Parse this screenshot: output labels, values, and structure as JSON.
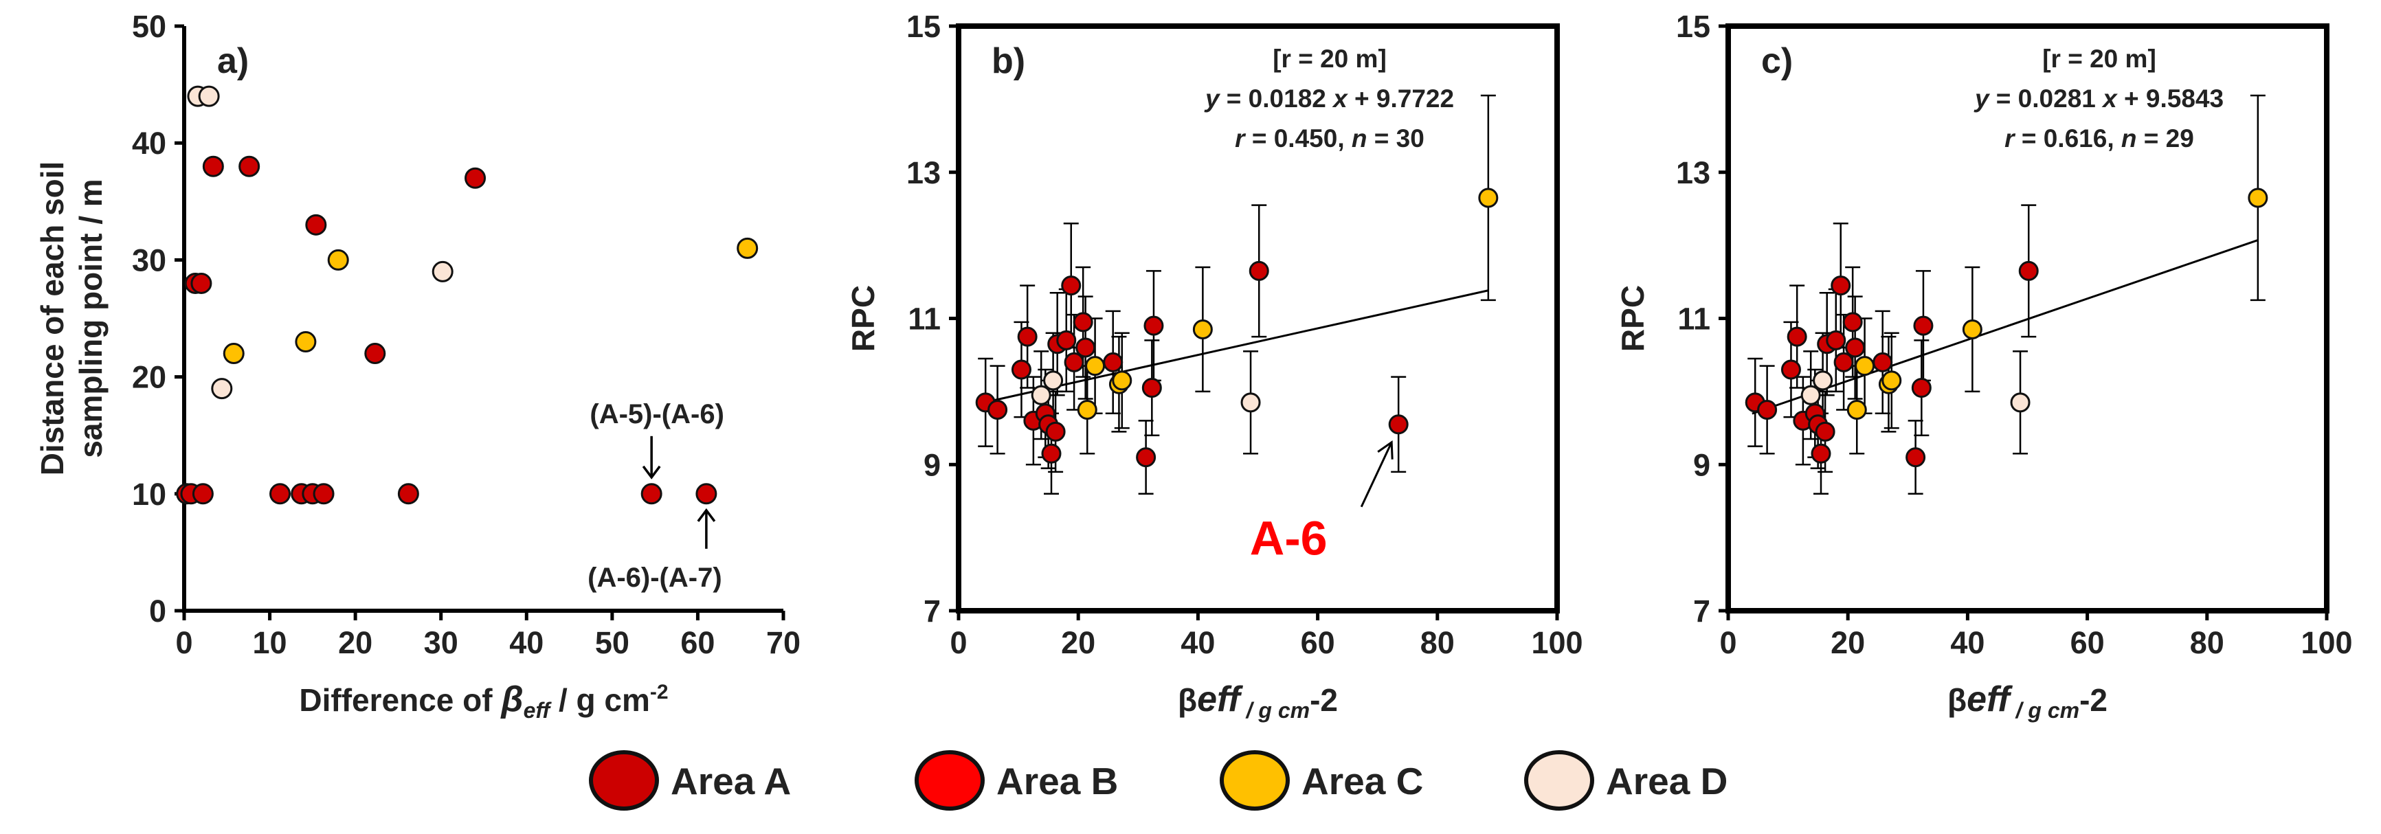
{
  "colors": {
    "area_a": "#cc0000",
    "area_b": "#ff0000",
    "area_c": "#ffc000",
    "area_d": "#fbe5d6",
    "axis": "#000000",
    "text": "#222222",
    "highlight": "#ff0000"
  },
  "legend": {
    "items": [
      {
        "label": "Area A",
        "color": "#cc0000"
      },
      {
        "label": "Area B",
        "color": "#ff0000"
      },
      {
        "label": "Area C",
        "color": "#ffc000"
      },
      {
        "label": "Area D",
        "color": "#fbe5d6"
      }
    ]
  },
  "chart_data": [
    {
      "type": "scatter",
      "panel": "a)",
      "xlabel_parts": [
        "Difference of ",
        "β",
        "eff",
        " / g cm",
        "-2"
      ],
      "ylabel_lines": [
        "Distance of each soil",
        "sampling point / m"
      ],
      "xlim": [
        0,
        70
      ],
      "ylim": [
        0,
        50
      ],
      "xticks": [
        0,
        10,
        20,
        30,
        40,
        50,
        60,
        70
      ],
      "yticks": [
        0,
        10,
        20,
        30,
        40,
        50
      ],
      "points": [
        {
          "x": 0.3,
          "y": 10,
          "area": "A"
        },
        {
          "x": 0.8,
          "y": 10,
          "area": "A"
        },
        {
          "x": 2.2,
          "y": 10,
          "area": "A"
        },
        {
          "x": 11.2,
          "y": 10,
          "area": "A"
        },
        {
          "x": 13.7,
          "y": 10,
          "area": "A"
        },
        {
          "x": 15.0,
          "y": 10,
          "area": "A"
        },
        {
          "x": 16.3,
          "y": 10,
          "area": "A"
        },
        {
          "x": 26.2,
          "y": 10,
          "area": "A"
        },
        {
          "x": 54.6,
          "y": 10,
          "area": "A"
        },
        {
          "x": 61.0,
          "y": 10,
          "area": "A"
        },
        {
          "x": 1.3,
          "y": 28,
          "area": "A"
        },
        {
          "x": 2.0,
          "y": 28,
          "area": "A"
        },
        {
          "x": 3.4,
          "y": 38,
          "area": "A"
        },
        {
          "x": 7.6,
          "y": 38,
          "area": "A"
        },
        {
          "x": 15.4,
          "y": 33,
          "area": "A"
        },
        {
          "x": 22.3,
          "y": 22,
          "area": "A"
        },
        {
          "x": 34.0,
          "y": 37,
          "area": "A"
        },
        {
          "x": 18.0,
          "y": 30,
          "area": "C"
        },
        {
          "x": 14.2,
          "y": 23,
          "area": "C"
        },
        {
          "x": 5.8,
          "y": 22,
          "area": "C"
        },
        {
          "x": 65.8,
          "y": 31,
          "area": "C"
        },
        {
          "x": 1.6,
          "y": 44,
          "area": "D"
        },
        {
          "x": 2.9,
          "y": 44,
          "area": "D"
        },
        {
          "x": 4.4,
          "y": 19,
          "area": "D"
        },
        {
          "x": 30.2,
          "y": 29,
          "area": "D"
        }
      ],
      "annotations": [
        {
          "text": "(A-5)-(A-6)",
          "target_x": 54.6,
          "target_y": 10,
          "side": "above"
        },
        {
          "text": "(A-6)-(A-7)",
          "target_x": 61.0,
          "target_y": 10,
          "side": "below"
        }
      ]
    },
    {
      "type": "scatter",
      "panel": "b)",
      "xlabel_parts": [
        "β",
        "eff",
        " / g cm",
        "-2"
      ],
      "ylabel": "RPC",
      "xlim": [
        0,
        100
      ],
      "ylim": [
        7,
        15
      ],
      "xticks": [
        0,
        20,
        40,
        60,
        80,
        100
      ],
      "yticks": [
        7,
        9,
        11,
        13,
        15
      ],
      "stats": {
        "line1": "[r = 20 m]",
        "slope": "0.0182",
        "intercept": "9.7722",
        "r": "0.450",
        "n": "30"
      },
      "fit": {
        "slope": 0.0182,
        "intercept": 9.7722,
        "x_range": [
          4,
          88.5
        ]
      },
      "highlight": {
        "text": "A-6",
        "target_x": 73.5,
        "target_y": 9.55
      },
      "points": [
        {
          "x": 4.5,
          "y": 9.85,
          "err": 0.6,
          "area": "A"
        },
        {
          "x": 6.5,
          "y": 9.75,
          "err": 0.6,
          "area": "A"
        },
        {
          "x": 10.5,
          "y": 10.3,
          "err": 0.65,
          "area": "A"
        },
        {
          "x": 11.5,
          "y": 10.75,
          "err": 0.7,
          "area": "A"
        },
        {
          "x": 12.5,
          "y": 9.6,
          "err": 0.6,
          "area": "A"
        },
        {
          "x": 14.5,
          "y": 9.7,
          "err": 0.6,
          "area": "A"
        },
        {
          "x": 15.0,
          "y": 9.55,
          "err": 0.6,
          "area": "A"
        },
        {
          "x": 15.5,
          "y": 9.15,
          "err": 0.55,
          "area": "A"
        },
        {
          "x": 16.2,
          "y": 9.45,
          "err": 0.55,
          "area": "A"
        },
        {
          "x": 16.5,
          "y": 10.65,
          "err": 0.7,
          "area": "A"
        },
        {
          "x": 18.0,
          "y": 10.7,
          "err": 0.7,
          "area": "A"
        },
        {
          "x": 18.8,
          "y": 11.45,
          "err": 0.85,
          "area": "A"
        },
        {
          "x": 19.3,
          "y": 10.4,
          "err": 0.65,
          "area": "A"
        },
        {
          "x": 20.8,
          "y": 10.95,
          "err": 0.75,
          "area": "A"
        },
        {
          "x": 21.2,
          "y": 10.6,
          "err": 0.7,
          "area": "A"
        },
        {
          "x": 25.8,
          "y": 10.4,
          "err": 0.7,
          "area": "A"
        },
        {
          "x": 31.3,
          "y": 9.1,
          "err": 0.5,
          "area": "A"
        },
        {
          "x": 32.3,
          "y": 10.05,
          "err": 0.65,
          "area": "A"
        },
        {
          "x": 32.6,
          "y": 10.9,
          "err": 0.75,
          "area": "A"
        },
        {
          "x": 50.2,
          "y": 11.65,
          "err": 0.9,
          "area": "A"
        },
        {
          "x": 73.5,
          "y": 9.55,
          "err": 0.65,
          "area": "A"
        },
        {
          "x": 22.8,
          "y": 10.35,
          "err": 0.65,
          "area": "C"
        },
        {
          "x": 21.5,
          "y": 9.75,
          "err": 0.6,
          "area": "C"
        },
        {
          "x": 26.8,
          "y": 10.1,
          "err": 0.65,
          "area": "C"
        },
        {
          "x": 27.3,
          "y": 10.15,
          "err": 0.65,
          "area": "C"
        },
        {
          "x": 40.8,
          "y": 10.85,
          "err": 0.85,
          "area": "C"
        },
        {
          "x": 88.5,
          "y": 12.65,
          "err": 1.4,
          "area": "C"
        },
        {
          "x": 13.8,
          "y": 9.95,
          "err": 0.6,
          "area": "D"
        },
        {
          "x": 15.8,
          "y": 10.15,
          "err": 0.65,
          "area": "D"
        },
        {
          "x": 48.8,
          "y": 9.85,
          "err": 0.7,
          "area": "D"
        }
      ]
    },
    {
      "type": "scatter",
      "panel": "c)",
      "xlabel_parts": [
        "β",
        "eff",
        " / g cm",
        "-2"
      ],
      "ylabel": "RPC",
      "xlim": [
        0,
        100
      ],
      "ylim": [
        7,
        15
      ],
      "xticks": [
        0,
        20,
        40,
        60,
        80,
        100
      ],
      "yticks": [
        7,
        9,
        11,
        13,
        15
      ],
      "stats": {
        "line1": "[r = 20 m]",
        "slope": "0.0281",
        "intercept": "9.5843",
        "r": "0.616",
        "n": "29"
      },
      "fit": {
        "slope": 0.0281,
        "intercept": 9.5843,
        "x_range": [
          4,
          88.5
        ]
      },
      "points": [
        {
          "x": 4.5,
          "y": 9.85,
          "err": 0.6,
          "area": "A"
        },
        {
          "x": 6.5,
          "y": 9.75,
          "err": 0.6,
          "area": "A"
        },
        {
          "x": 10.5,
          "y": 10.3,
          "err": 0.65,
          "area": "A"
        },
        {
          "x": 11.5,
          "y": 10.75,
          "err": 0.7,
          "area": "A"
        },
        {
          "x": 12.5,
          "y": 9.6,
          "err": 0.6,
          "area": "A"
        },
        {
          "x": 14.5,
          "y": 9.7,
          "err": 0.6,
          "area": "A"
        },
        {
          "x": 15.0,
          "y": 9.55,
          "err": 0.6,
          "area": "A"
        },
        {
          "x": 15.5,
          "y": 9.15,
          "err": 0.55,
          "area": "A"
        },
        {
          "x": 16.2,
          "y": 9.45,
          "err": 0.55,
          "area": "A"
        },
        {
          "x": 16.5,
          "y": 10.65,
          "err": 0.7,
          "area": "A"
        },
        {
          "x": 18.0,
          "y": 10.7,
          "err": 0.7,
          "area": "A"
        },
        {
          "x": 18.8,
          "y": 11.45,
          "err": 0.85,
          "area": "A"
        },
        {
          "x": 19.3,
          "y": 10.4,
          "err": 0.65,
          "area": "A"
        },
        {
          "x": 20.8,
          "y": 10.95,
          "err": 0.75,
          "area": "A"
        },
        {
          "x": 21.2,
          "y": 10.6,
          "err": 0.7,
          "area": "A"
        },
        {
          "x": 25.8,
          "y": 10.4,
          "err": 0.7,
          "area": "A"
        },
        {
          "x": 31.3,
          "y": 9.1,
          "err": 0.5,
          "area": "A"
        },
        {
          "x": 32.3,
          "y": 10.05,
          "err": 0.65,
          "area": "A"
        },
        {
          "x": 32.6,
          "y": 10.9,
          "err": 0.75,
          "area": "A"
        },
        {
          "x": 50.2,
          "y": 11.65,
          "err": 0.9,
          "area": "A"
        },
        {
          "x": 22.8,
          "y": 10.35,
          "err": 0.65,
          "area": "C"
        },
        {
          "x": 21.5,
          "y": 9.75,
          "err": 0.6,
          "area": "C"
        },
        {
          "x": 26.8,
          "y": 10.1,
          "err": 0.65,
          "area": "C"
        },
        {
          "x": 27.3,
          "y": 10.15,
          "err": 0.65,
          "area": "C"
        },
        {
          "x": 40.8,
          "y": 10.85,
          "err": 0.85,
          "area": "C"
        },
        {
          "x": 88.5,
          "y": 12.65,
          "err": 1.4,
          "area": "C"
        },
        {
          "x": 13.8,
          "y": 9.95,
          "err": 0.6,
          "area": "D"
        },
        {
          "x": 15.8,
          "y": 10.15,
          "err": 0.65,
          "area": "D"
        },
        {
          "x": 48.8,
          "y": 9.85,
          "err": 0.7,
          "area": "D"
        }
      ]
    }
  ]
}
